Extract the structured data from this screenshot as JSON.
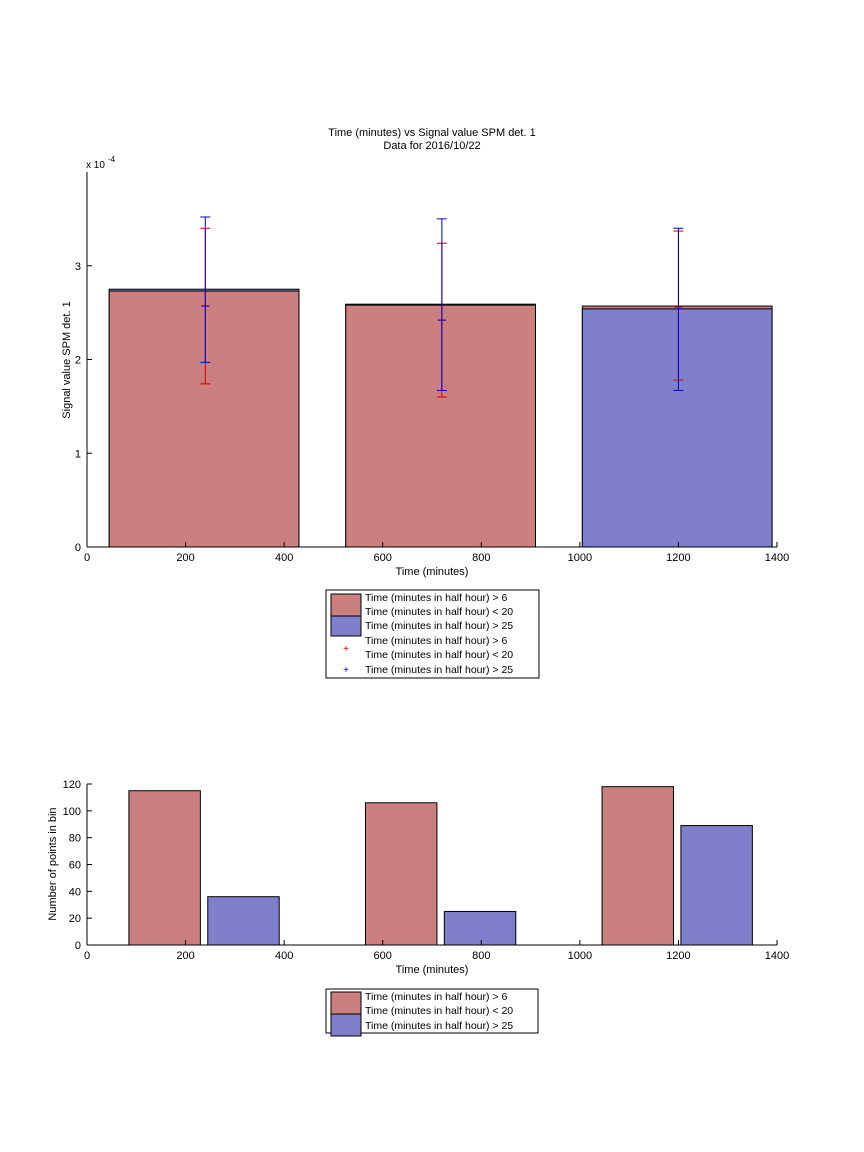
{
  "chart_data": [
    {
      "type": "bar",
      "title": "Time (minutes) vs Signal value SPM det. 1",
      "subtitle": "Data for 2016/10/22",
      "xlabel": "Time (minutes)",
      "ylabel": "Signal value SPM det. 1",
      "y_exponent_base": "x 10",
      "y_exponent_power": "-4",
      "xlim": [
        0,
        1400
      ],
      "ylim": [
        0,
        4
      ],
      "xticks": [
        0,
        200,
        400,
        600,
        800,
        1000,
        1200,
        1400
      ],
      "yticks": [
        0,
        1,
        2,
        3
      ],
      "grid": false,
      "legend_position": "below",
      "legend": [
        {
          "label": "Time (minutes in half hour) > 6",
          "label2": "Time (minutes in half hour) < 20",
          "symbol": "patch",
          "color": "#cc7f7f"
        },
        {
          "label": "Time (minutes in half hour) > 25",
          "symbol": "patch",
          "color": "#7f7fcc"
        },
        {
          "label": "Time (minutes in half hour) > 6",
          "label2": "Time (minutes in half hour) < 20",
          "symbol": "plus",
          "color": "#cc0000"
        },
        {
          "label": "Time (minutes in half hour) > 25",
          "symbol": "plus",
          "color": "#0000cc"
        }
      ],
      "bars": [
        {
          "x_start": 45,
          "x_end": 430,
          "red": 2.73,
          "blue": 2.75
        },
        {
          "x_start": 525,
          "x_end": 910,
          "red": 2.58,
          "blue": 2.59
        },
        {
          "x_start": 1005,
          "x_end": 1390,
          "red": 2.57,
          "blue": 2.54
        }
      ],
      "series": [
        {
          "name": "Time (minutes in half hour) > 6 / < 20",
          "color": "#cc0000",
          "x": [
            240,
            720,
            1200
          ],
          "y": [
            2.57,
            2.42,
            2.56
          ],
          "lower": [
            1.74,
            1.6,
            1.78
          ],
          "upper": [
            3.4,
            3.24,
            3.37
          ]
        },
        {
          "name": "Time (minutes in half hour) > 25",
          "color": "#0000cc",
          "x": [
            240,
            720,
            1200
          ],
          "y": [
            2.57,
            2.42,
            2.54
          ],
          "lower": [
            1.97,
            1.67,
            1.67
          ],
          "upper": [
            3.52,
            3.5,
            3.4
          ]
        }
      ],
      "colors": {
        "red_bar": "#cc7f7f",
        "blue_bar": "#7f7fcc",
        "red_err": "#cc0000",
        "blue_err": "#0000cc"
      }
    },
    {
      "type": "bar",
      "xlabel": "Time (minutes)",
      "ylabel": "Number of points in bin",
      "xlim": [
        0,
        1400
      ],
      "ylim": [
        0,
        120
      ],
      "xticks": [
        0,
        200,
        400,
        600,
        800,
        1000,
        1200,
        1400
      ],
      "yticks": [
        0,
        20,
        40,
        60,
        80,
        100,
        120
      ],
      "grid": false,
      "legend_position": "below",
      "legend": [
        {
          "label": "Time (minutes in half hour) > 6",
          "label2": "Time (minutes in half hour) < 20",
          "symbol": "patch",
          "color": "#cc7f7f"
        },
        {
          "label": "Time (minutes in half hour) > 25",
          "symbol": "patch",
          "color": "#7f7fcc"
        }
      ],
      "series": [
        {
          "name": "Time (minutes in half hour) > 6 / < 20",
          "color": "#cc7f7f",
          "x_start": [
            85,
            565,
            1045
          ],
          "x_end": [
            230,
            710,
            1190
          ],
          "values": [
            115,
            106,
            118
          ]
        },
        {
          "name": "Time (minutes in half hour) > 25",
          "color": "#7f7fcc",
          "x_start": [
            245,
            725,
            1205
          ],
          "x_end": [
            390,
            870,
            1350
          ],
          "values": [
            36,
            25,
            89
          ]
        }
      ]
    }
  ]
}
